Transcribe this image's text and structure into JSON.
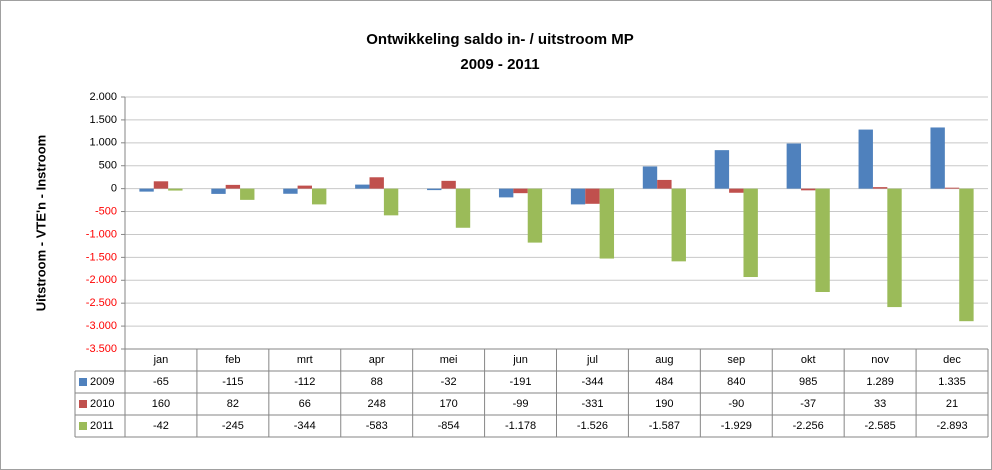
{
  "chart_data": {
    "type": "bar",
    "title": "Ontwikkeling saldo in- / uitstroom MP",
    "subtitle": "2009 - 2011",
    "y_label": "Uitstroom -  VTE'n -  Instroom",
    "categories": [
      "jan",
      "feb",
      "mrt",
      "apr",
      "mei",
      "jun",
      "jul",
      "aug",
      "sep",
      "okt",
      "nov",
      "dec"
    ],
    "series": [
      {
        "name": "2009",
        "color": "#4f81bd",
        "values": [
          -65,
          -115,
          -112,
          88,
          -32,
          -191,
          -344,
          484,
          840,
          985,
          1289,
          1335
        ],
        "value_labels": [
          "-65",
          "-115",
          "-112",
          "88",
          "-32",
          "-191",
          "-344",
          "484",
          "840",
          "985",
          "1.289",
          "1.335"
        ]
      },
      {
        "name": "2010",
        "color": "#c0504d",
        "values": [
          160,
          82,
          66,
          248,
          170,
          -99,
          -331,
          190,
          -90,
          -37,
          33,
          21
        ],
        "value_labels": [
          "160",
          "82",
          "66",
          "248",
          "170",
          "-99",
          "-331",
          "190",
          "-90",
          "-37",
          "33",
          "21"
        ]
      },
      {
        "name": "2011",
        "color": "#9bbb59",
        "values": [
          -42,
          -245,
          -344,
          -583,
          -854,
          -1178,
          -1526,
          -1587,
          -1929,
          -2256,
          -2585,
          -2893
        ],
        "value_labels": [
          "-42",
          "-245",
          "-344",
          "-583",
          "-854",
          "-1.178",
          "-1.526",
          "-1.587",
          "-1.929",
          "-2.256",
          "-2.585",
          "-2.893"
        ]
      }
    ],
    "ylim": [
      -3500,
      2000
    ],
    "yticks": [
      {
        "value": 2000,
        "label": "2.000"
      },
      {
        "value": 1500,
        "label": "1.500"
      },
      {
        "value": 1000,
        "label": "1.000"
      },
      500,
      0,
      -500,
      {
        "value": -1000,
        "label": "-1.000"
      },
      {
        "value": -1500,
        "label": "-1.500"
      },
      {
        "value": -2000,
        "label": "-2.000"
      },
      {
        "value": -2500,
        "label": "-2.500"
      },
      {
        "value": -3000,
        "label": "-3.000"
      },
      {
        "value": -3500,
        "label": "-3.500"
      }
    ],
    "negative_tick_color": "#ff0000",
    "grid": true
  }
}
